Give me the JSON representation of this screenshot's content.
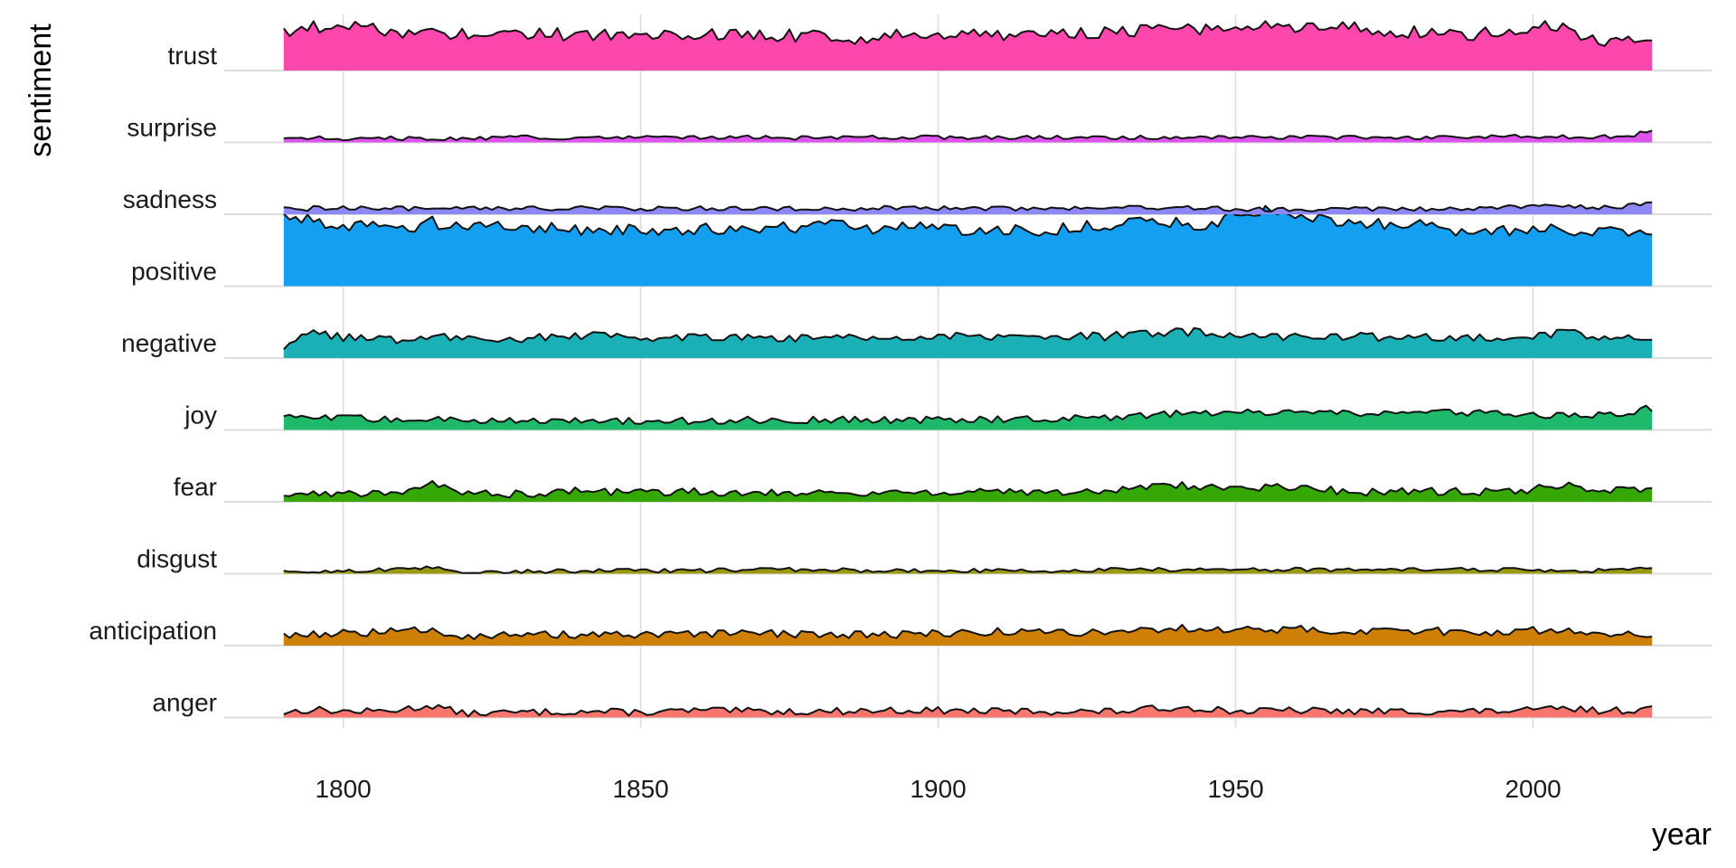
{
  "chart_data": {
    "type": "area",
    "subtype": "ridgeline",
    "title": "",
    "xlabel": "year",
    "ylabel": "sentiment",
    "xlim": [
      1780,
      2030
    ],
    "x_range": [
      1790,
      2020
    ],
    "x_ticks": [
      1800,
      1850,
      1900,
      1950,
      2000
    ],
    "x_step": 1,
    "y_units": "relative frequency (normalized, approx.)",
    "ridge_scale_max": 0.9,
    "grid": true,
    "legend": "none",
    "series": [
      {
        "name": "anger",
        "color": "#F8766D",
        "knots": [
          [
            1790,
            0.05
          ],
          [
            1795,
            0.08
          ],
          [
            1800,
            0.06
          ],
          [
            1805,
            0.06
          ],
          [
            1810,
            0.08
          ],
          [
            1815,
            0.12
          ],
          [
            1820,
            0.04
          ],
          [
            1830,
            0.05
          ],
          [
            1840,
            0.06
          ],
          [
            1850,
            0.05
          ],
          [
            1860,
            0.07
          ],
          [
            1870,
            0.06
          ],
          [
            1880,
            0.06
          ],
          [
            1890,
            0.07
          ],
          [
            1900,
            0.07
          ],
          [
            1910,
            0.06
          ],
          [
            1920,
            0.06
          ],
          [
            1930,
            0.06
          ],
          [
            1940,
            0.1
          ],
          [
            1945,
            0.09
          ],
          [
            1950,
            0.06
          ],
          [
            1960,
            0.07
          ],
          [
            1970,
            0.06
          ],
          [
            1980,
            0.06
          ],
          [
            1990,
            0.06
          ],
          [
            2000,
            0.07
          ],
          [
            2005,
            0.09
          ],
          [
            2010,
            0.07
          ],
          [
            2015,
            0.07
          ],
          [
            2020,
            0.09
          ]
        ],
        "noise": 0.035
      },
      {
        "name": "anticipation",
        "color": "#CD7F06",
        "knots": [
          [
            1790,
            0.11
          ],
          [
            1800,
            0.12
          ],
          [
            1810,
            0.14
          ],
          [
            1815,
            0.16
          ],
          [
            1820,
            0.1
          ],
          [
            1830,
            0.1
          ],
          [
            1840,
            0.11
          ],
          [
            1850,
            0.1
          ],
          [
            1860,
            0.11
          ],
          [
            1870,
            0.12
          ],
          [
            1880,
            0.11
          ],
          [
            1890,
            0.11
          ],
          [
            1900,
            0.12
          ],
          [
            1910,
            0.14
          ],
          [
            1920,
            0.13
          ],
          [
            1930,
            0.14
          ],
          [
            1940,
            0.17
          ],
          [
            1950,
            0.16
          ],
          [
            1960,
            0.16
          ],
          [
            1970,
            0.14
          ],
          [
            1980,
            0.15
          ],
          [
            1990,
            0.13
          ],
          [
            2000,
            0.15
          ],
          [
            2005,
            0.14
          ],
          [
            2010,
            0.13
          ],
          [
            2020,
            0.12
          ]
        ],
        "noise": 0.04
      },
      {
        "name": "disgust",
        "color": "#9A9A12",
        "knots": [
          [
            1790,
            0.01
          ],
          [
            1800,
            0.03
          ],
          [
            1810,
            0.04
          ],
          [
            1815,
            0.06
          ],
          [
            1820,
            0.02
          ],
          [
            1830,
            0.02
          ],
          [
            1840,
            0.03
          ],
          [
            1850,
            0.03
          ],
          [
            1860,
            0.03
          ],
          [
            1870,
            0.04
          ],
          [
            1880,
            0.04
          ],
          [
            1890,
            0.03
          ],
          [
            1900,
            0.03
          ],
          [
            1910,
            0.03
          ],
          [
            1920,
            0.03
          ],
          [
            1930,
            0.04
          ],
          [
            1940,
            0.04
          ],
          [
            1950,
            0.04
          ],
          [
            1960,
            0.04
          ],
          [
            1970,
            0.04
          ],
          [
            1980,
            0.04
          ],
          [
            1990,
            0.04
          ],
          [
            2000,
            0.04
          ],
          [
            2010,
            0.03
          ],
          [
            2020,
            0.06
          ]
        ],
        "noise": 0.02
      },
      {
        "name": "fear",
        "color": "#35A806",
        "knots": [
          [
            1790,
            0.07
          ],
          [
            1800,
            0.08
          ],
          [
            1810,
            0.11
          ],
          [
            1815,
            0.17
          ],
          [
            1820,
            0.09
          ],
          [
            1830,
            0.08
          ],
          [
            1840,
            0.11
          ],
          [
            1850,
            0.09
          ],
          [
            1860,
            0.1
          ],
          [
            1870,
            0.1
          ],
          [
            1880,
            0.09
          ],
          [
            1890,
            0.09
          ],
          [
            1900,
            0.1
          ],
          [
            1910,
            0.09
          ],
          [
            1920,
            0.1
          ],
          [
            1930,
            0.11
          ],
          [
            1940,
            0.17
          ],
          [
            1945,
            0.14
          ],
          [
            1950,
            0.15
          ],
          [
            1960,
            0.14
          ],
          [
            1970,
            0.1
          ],
          [
            1980,
            0.1
          ],
          [
            1990,
            0.1
          ],
          [
            2000,
            0.12
          ],
          [
            2005,
            0.18
          ],
          [
            2010,
            0.11
          ],
          [
            2020,
            0.12
          ]
        ],
        "noise": 0.04
      },
      {
        "name": "joy",
        "color": "#1EB96A",
        "knots": [
          [
            1790,
            0.12
          ],
          [
            1800,
            0.12
          ],
          [
            1810,
            0.1
          ],
          [
            1820,
            0.1
          ],
          [
            1830,
            0.1
          ],
          [
            1840,
            0.09
          ],
          [
            1850,
            0.09
          ],
          [
            1860,
            0.09
          ],
          [
            1870,
            0.1
          ],
          [
            1880,
            0.1
          ],
          [
            1890,
            0.1
          ],
          [
            1900,
            0.1
          ],
          [
            1910,
            0.11
          ],
          [
            1920,
            0.11
          ],
          [
            1930,
            0.13
          ],
          [
            1940,
            0.16
          ],
          [
            1950,
            0.17
          ],
          [
            1960,
            0.17
          ],
          [
            1970,
            0.16
          ],
          [
            1980,
            0.17
          ],
          [
            1985,
            0.19
          ],
          [
            1990,
            0.17
          ],
          [
            2000,
            0.14
          ],
          [
            2010,
            0.15
          ],
          [
            2015,
            0.16
          ],
          [
            2020,
            0.22
          ]
        ],
        "noise": 0.035
      },
      {
        "name": "negative",
        "color": "#1AB0B6",
        "knots": [
          [
            1790,
            0.12
          ],
          [
            1795,
            0.24
          ],
          [
            1800,
            0.2
          ],
          [
            1810,
            0.18
          ],
          [
            1815,
            0.24
          ],
          [
            1820,
            0.19
          ],
          [
            1830,
            0.2
          ],
          [
            1840,
            0.22
          ],
          [
            1850,
            0.21
          ],
          [
            1860,
            0.22
          ],
          [
            1870,
            0.21
          ],
          [
            1880,
            0.2
          ],
          [
            1890,
            0.21
          ],
          [
            1900,
            0.22
          ],
          [
            1910,
            0.2
          ],
          [
            1920,
            0.21
          ],
          [
            1930,
            0.22
          ],
          [
            1940,
            0.26
          ],
          [
            1945,
            0.26
          ],
          [
            1950,
            0.21
          ],
          [
            1960,
            0.21
          ],
          [
            1970,
            0.21
          ],
          [
            1980,
            0.2
          ],
          [
            1990,
            0.2
          ],
          [
            2000,
            0.21
          ],
          [
            2005,
            0.27
          ],
          [
            2010,
            0.2
          ],
          [
            2020,
            0.2
          ]
        ],
        "noise": 0.045
      },
      {
        "name": "positive",
        "color": "#159FF0",
        "knots": [
          [
            1790,
            0.72
          ],
          [
            1795,
            0.65
          ],
          [
            1800,
            0.62
          ],
          [
            1810,
            0.58
          ],
          [
            1815,
            0.64
          ],
          [
            1820,
            0.58
          ],
          [
            1830,
            0.58
          ],
          [
            1840,
            0.57
          ],
          [
            1850,
            0.56
          ],
          [
            1860,
            0.57
          ],
          [
            1870,
            0.58
          ],
          [
            1880,
            0.6
          ],
          [
            1890,
            0.58
          ],
          [
            1900,
            0.58
          ],
          [
            1910,
            0.55
          ],
          [
            1920,
            0.57
          ],
          [
            1930,
            0.62
          ],
          [
            1940,
            0.64
          ],
          [
            1945,
            0.6
          ],
          [
            1950,
            0.7
          ],
          [
            1955,
            0.76
          ],
          [
            1960,
            0.72
          ],
          [
            1970,
            0.6
          ],
          [
            1980,
            0.64
          ],
          [
            1985,
            0.54
          ],
          [
            1990,
            0.5
          ],
          [
            2000,
            0.58
          ],
          [
            2010,
            0.55
          ],
          [
            2020,
            0.5
          ]
        ],
        "noise": 0.065
      },
      {
        "name": "sadness",
        "color": "#8D88F5",
        "knots": [
          [
            1790,
            0.05
          ],
          [
            1800,
            0.07
          ],
          [
            1810,
            0.06
          ],
          [
            1820,
            0.05
          ],
          [
            1830,
            0.06
          ],
          [
            1840,
            0.06
          ],
          [
            1850,
            0.06
          ],
          [
            1860,
            0.06
          ],
          [
            1870,
            0.06
          ],
          [
            1880,
            0.06
          ],
          [
            1890,
            0.06
          ],
          [
            1900,
            0.06
          ],
          [
            1910,
            0.06
          ],
          [
            1920,
            0.06
          ],
          [
            1930,
            0.06
          ],
          [
            1940,
            0.06
          ],
          [
            1950,
            0.05
          ],
          [
            1960,
            0.05
          ],
          [
            1970,
            0.06
          ],
          [
            1980,
            0.05
          ],
          [
            1990,
            0.06
          ],
          [
            2000,
            0.07
          ],
          [
            2005,
            0.09
          ],
          [
            2010,
            0.06
          ],
          [
            2020,
            0.1
          ]
        ],
        "noise": 0.025
      },
      {
        "name": "surprise",
        "color": "#DD53EE",
        "knots": [
          [
            1790,
            0.05
          ],
          [
            1800,
            0.04
          ],
          [
            1810,
            0.04
          ],
          [
            1820,
            0.04
          ],
          [
            1830,
            0.05
          ],
          [
            1840,
            0.04
          ],
          [
            1850,
            0.05
          ],
          [
            1860,
            0.05
          ],
          [
            1870,
            0.05
          ],
          [
            1880,
            0.04
          ],
          [
            1890,
            0.05
          ],
          [
            1900,
            0.05
          ],
          [
            1910,
            0.05
          ],
          [
            1920,
            0.05
          ],
          [
            1930,
            0.05
          ],
          [
            1940,
            0.05
          ],
          [
            1950,
            0.05
          ],
          [
            1960,
            0.05
          ],
          [
            1970,
            0.05
          ],
          [
            1980,
            0.05
          ],
          [
            1990,
            0.05
          ],
          [
            2000,
            0.06
          ],
          [
            2010,
            0.05
          ],
          [
            2017,
            0.07
          ],
          [
            2020,
            0.13
          ]
        ],
        "noise": 0.02
      },
      {
        "name": "trust",
        "color": "#FE47AC",
        "knots": [
          [
            1790,
            0.4
          ],
          [
            1800,
            0.46
          ],
          [
            1810,
            0.36
          ],
          [
            1820,
            0.38
          ],
          [
            1830,
            0.36
          ],
          [
            1840,
            0.36
          ],
          [
            1850,
            0.34
          ],
          [
            1860,
            0.35
          ],
          [
            1870,
            0.36
          ],
          [
            1880,
            0.34
          ],
          [
            1886,
            0.28
          ],
          [
            1890,
            0.34
          ],
          [
            1900,
            0.36
          ],
          [
            1910,
            0.36
          ],
          [
            1920,
            0.38
          ],
          [
            1930,
            0.38
          ],
          [
            1940,
            0.4
          ],
          [
            1950,
            0.42
          ],
          [
            1955,
            0.46
          ],
          [
            1960,
            0.44
          ],
          [
            1970,
            0.42
          ],
          [
            1980,
            0.38
          ],
          [
            1990,
            0.36
          ],
          [
            2000,
            0.42
          ],
          [
            2005,
            0.44
          ],
          [
            2010,
            0.32
          ],
          [
            2015,
            0.28
          ],
          [
            2020,
            0.3
          ]
        ],
        "noise": 0.065
      }
    ]
  }
}
